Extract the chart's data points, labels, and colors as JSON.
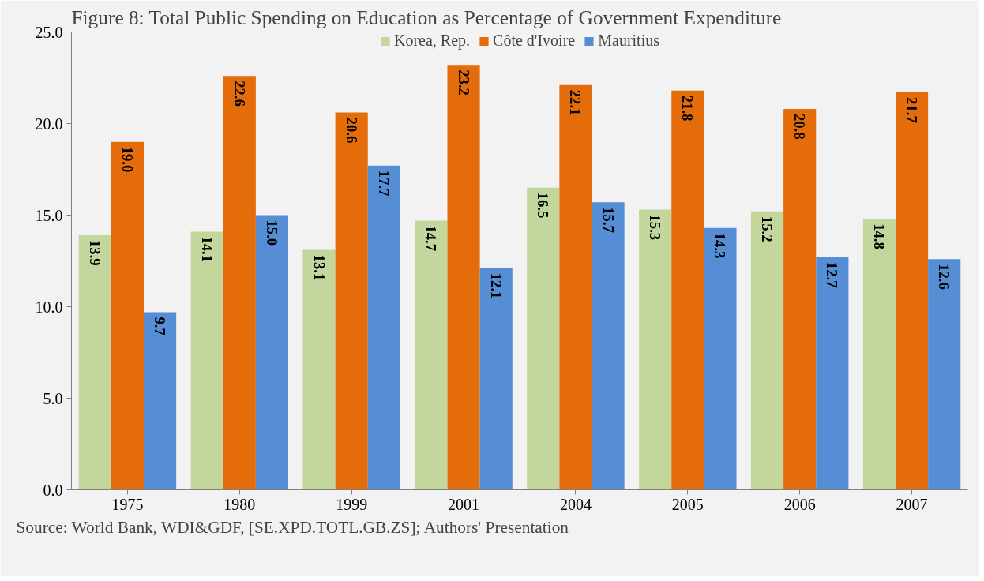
{
  "chart_data": {
    "type": "bar",
    "title": "Figure 8: Total Public Spending on Education as Percentage of Government Expenditure",
    "categories": [
      "1975",
      "1980",
      "1999",
      "2001",
      "2004",
      "2005",
      "2006",
      "2007"
    ],
    "series": [
      {
        "name": "Korea, Rep.",
        "color": "#c3d69b",
        "values": [
          13.9,
          14.1,
          13.1,
          14.7,
          16.5,
          15.3,
          15.2,
          14.8
        ],
        "value_labels": [
          "13.9",
          "14.1",
          "13.1",
          "14.7",
          "16.5",
          "15.3",
          "15.2",
          "14.8"
        ]
      },
      {
        "name": "Côte d'Ivoire",
        "color": "#e46c0a",
        "values": [
          19.0,
          22.6,
          20.6,
          23.2,
          22.1,
          21.8,
          20.8,
          21.7
        ],
        "value_labels": [
          "19.0",
          "22.6",
          "20.6",
          "23.2",
          "22.1",
          "21.8",
          "20.8",
          "21.7"
        ]
      },
      {
        "name": "Mauritius",
        "color": "#558ed5",
        "values": [
          9.7,
          15.0,
          17.7,
          12.1,
          15.7,
          14.3,
          12.7,
          12.6
        ],
        "value_labels": [
          "9.7",
          "15.0",
          "17.7",
          "12.1",
          "15.7",
          "14.3",
          "12.7",
          "12.6"
        ]
      }
    ],
    "ylim": [
      0,
      25
    ],
    "yticks": [
      {
        "value": 0,
        "label": "0.0"
      },
      {
        "value": 5,
        "label": "5.0"
      },
      {
        "value": 10,
        "label": "10.0"
      },
      {
        "value": 15,
        "label": "15.0"
      },
      {
        "value": 20,
        "label": "20.0"
      },
      {
        "value": 25,
        "label": "25.0"
      }
    ],
    "grid": false,
    "legend": "top",
    "annotations": [
      "Source: World Bank, WDI&GDF, [SE.XPD.TOTL.GB.ZS]; Authors' Presentation"
    ]
  }
}
